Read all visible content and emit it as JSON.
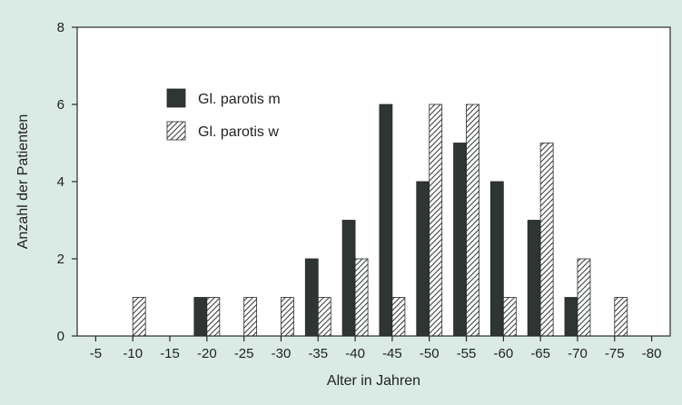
{
  "colors": {
    "background": "#d9ebe4",
    "plot_background": "#ffffff",
    "male_fill": "#2e3533",
    "female_hatch": "#3a4240",
    "female_bg": "#ffffff",
    "axis": "#2a2a2a"
  },
  "chart_data": {
    "type": "bar",
    "xlabel": "Alter in Jahren",
    "ylabel": "Anzahl der Patienten",
    "ylim": [
      0,
      8
    ],
    "yticks": [
      "0",
      "2",
      "4",
      "6",
      "8"
    ],
    "categories": [
      "-5",
      "-10",
      "-15",
      "-20",
      "-25",
      "-30",
      "-35",
      "-40",
      "-45",
      "-50",
      "-55",
      "-60",
      "-65",
      "-70",
      "-75",
      "-80"
    ],
    "grid": false,
    "legend_position": "top-left",
    "series": [
      {
        "name": "Gl. parotis m",
        "style": "solid",
        "values": [
          0,
          0,
          0,
          1,
          0,
          0,
          2,
          3,
          6,
          4,
          5,
          4,
          3,
          1,
          0,
          0
        ]
      },
      {
        "name": "Gl. parotis w",
        "style": "hatched",
        "values": [
          0,
          1,
          0,
          1,
          1,
          1,
          1,
          2,
          1,
          6,
          6,
          1,
          5,
          2,
          1,
          0
        ]
      }
    ]
  }
}
